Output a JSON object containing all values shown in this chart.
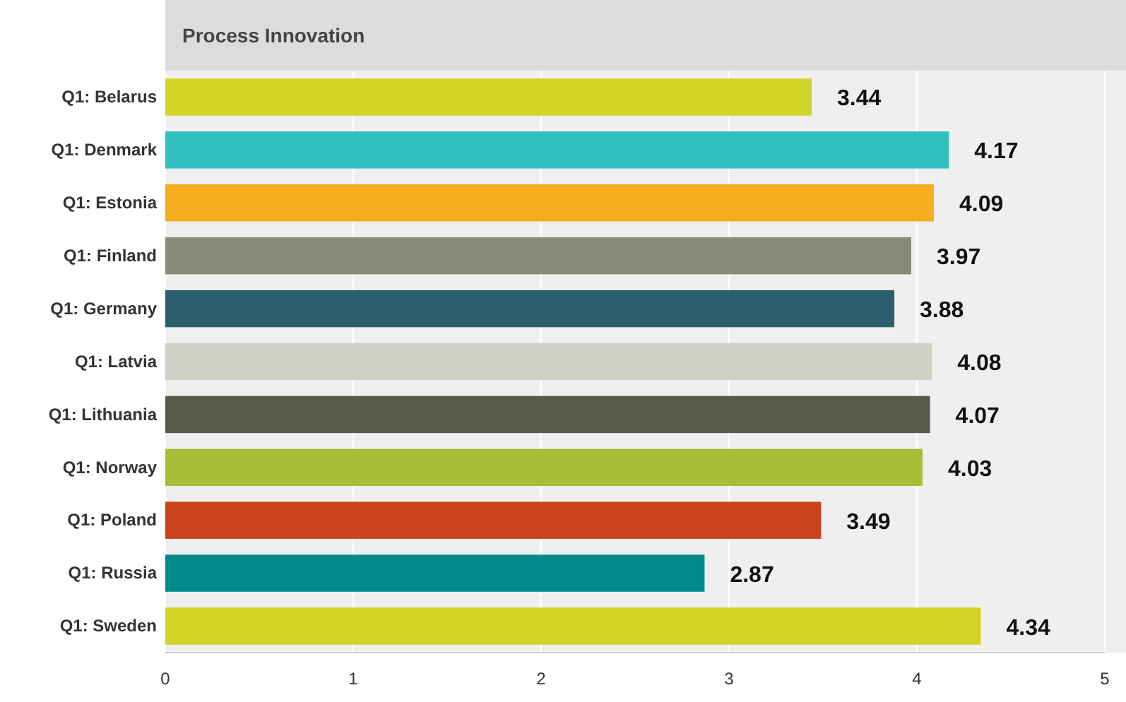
{
  "chart_data": {
    "type": "bar",
    "orientation": "horizontal",
    "title": "Process Innovation",
    "categories": [
      "Q1: Belarus",
      "Q1: Denmark",
      "Q1: Estonia",
      "Q1: Finland",
      "Q1: Germany",
      "Q1: Latvia",
      "Q1: Lithuania",
      "Q1: Norway",
      "Q1: Poland",
      "Q1: Russia",
      "Q1: Sweden"
    ],
    "values": [
      3.44,
      4.17,
      4.09,
      3.97,
      3.88,
      4.08,
      4.07,
      4.03,
      3.49,
      2.87,
      4.34
    ],
    "colors": [
      "#cfd426",
      "#33bfc0",
      "#f6ad1e",
      "#8a8a7a",
      "#2c5f6e",
      "#cfcfc3",
      "#59594b",
      "#a9bd37",
      "#c9441d",
      "#018a8a",
      "#cfd426"
    ],
    "xlim": [
      0,
      5
    ],
    "xticks": [
      0,
      1,
      2,
      3,
      4,
      5
    ],
    "grid": "x",
    "data_labels": true
  }
}
